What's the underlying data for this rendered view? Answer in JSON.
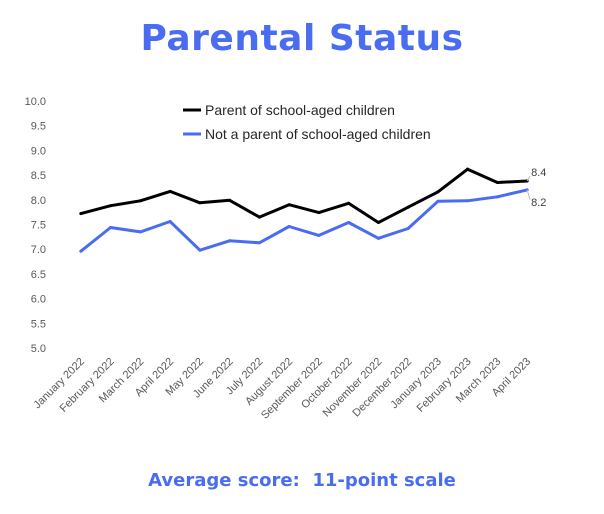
{
  "chart_data": {
    "type": "line",
    "title": "Parental Status",
    "subtitle": "Average score:  11-point scale",
    "xlabel": "",
    "ylabel": "",
    "ylim": [
      5.0,
      10.0
    ],
    "y_ticks": [
      "10.0",
      "9.5",
      "9.0",
      "8.5",
      "8.0",
      "7.5",
      "7.0",
      "6.5",
      "6.0",
      "5.5",
      "5.0"
    ],
    "grid": false,
    "legend_position": "top",
    "categories": [
      "January 2022",
      "February 2022",
      "March 2022",
      "April 2022",
      "May 2022",
      "June 2022",
      "July 2022",
      "August 2022",
      "September 2022",
      "October 2022",
      "November 2022",
      "December 2022",
      "January 2023",
      "February 2023",
      "March 2023",
      "April 2023"
    ],
    "series": [
      {
        "name": "Parent of school-aged children",
        "color": "#000000",
        "values": [
          7.72,
          7.88,
          7.98,
          8.17,
          7.94,
          7.99,
          7.65,
          7.9,
          7.74,
          7.93,
          7.54,
          7.85,
          8.16,
          8.62,
          8.35,
          8.38
        ],
        "end_label": "8.4"
      },
      {
        "name": "Not a parent of school-aged children",
        "color": "#4a6cf0",
        "values": [
          6.96,
          7.44,
          7.35,
          7.56,
          6.98,
          7.17,
          7.13,
          7.46,
          7.28,
          7.54,
          7.22,
          7.42,
          7.97,
          7.98,
          8.06,
          8.2
        ],
        "end_label": "8.2"
      }
    ]
  }
}
